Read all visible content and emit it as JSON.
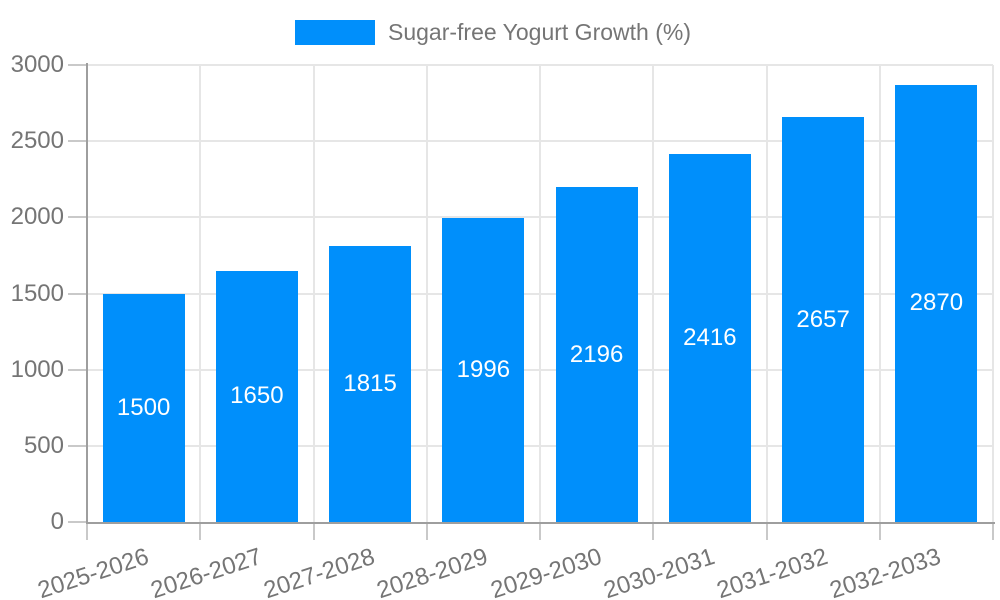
{
  "legend": {
    "label": "Sugar-free Yogurt Growth (%)"
  },
  "chart_data": {
    "type": "bar",
    "title": "Sugar-free Yogurt Growth (%)",
    "series_name": "Sugar-free Yogurt Growth (%)",
    "categories": [
      "2025-2026",
      "2026-2027",
      "2027-2028",
      "2028-2029",
      "2029-2030",
      "2030-2031",
      "2031-2032",
      "2032-2033"
    ],
    "values": [
      1500,
      1650,
      1815,
      1996,
      2196,
      2416,
      2657,
      2870
    ],
    "xlabel": "",
    "ylabel": "",
    "ylim": [
      0,
      3000
    ],
    "yticks": [
      0,
      500,
      1000,
      1500,
      2000,
      2500,
      3000
    ],
    "grid": true,
    "legend_position": "top-center",
    "bar_value_labels_inside": true,
    "colors": {
      "bar": "#008FFB",
      "bar_label": "#ffffff",
      "axis_label": "#757575",
      "grid_line": "#e6e6e6",
      "tick": "#c9c9c9",
      "axis_line": "#9e9e9e",
      "background": "#ffffff"
    }
  }
}
